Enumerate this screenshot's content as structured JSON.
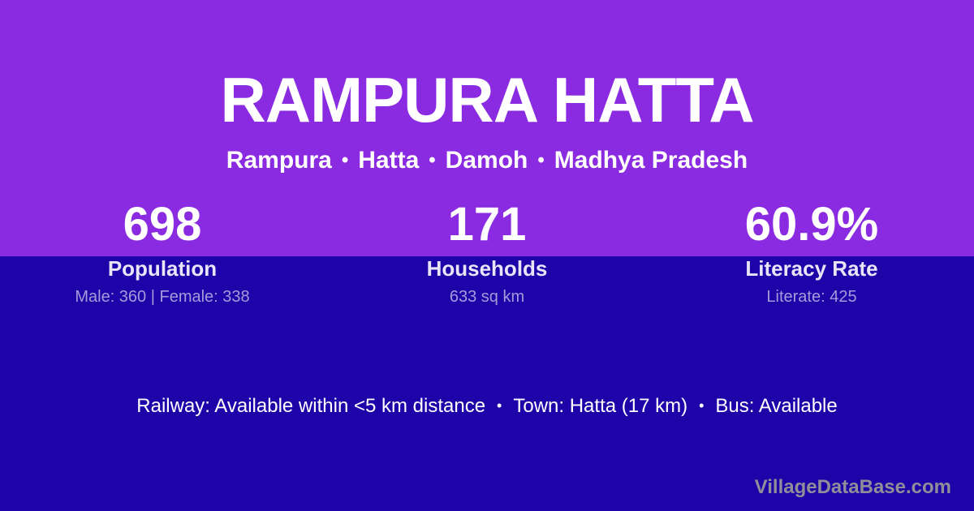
{
  "header": {
    "title": "RAMPURA HATTA",
    "breadcrumb": [
      "Rampura",
      "Hatta",
      "Damoh",
      "Madhya Pradesh"
    ]
  },
  "stats": [
    {
      "value": "698",
      "label": "Population",
      "detail": "Male: 360 | Female: 338"
    },
    {
      "value": "171",
      "label": "Households",
      "detail": "633 sq km"
    },
    {
      "value": "60.9%",
      "label": "Literacy Rate",
      "detail": "Literate: 425"
    }
  ],
  "amenities": [
    "Railway: Available within <5 km distance",
    "Town: Hatta (17 km)",
    "Bus: Available"
  ],
  "watermark": "VillageDataBase.com",
  "symbols": {
    "bullet": "•"
  },
  "colors": {
    "top-bg": "#8A2BE2",
    "bottom-bg": "#1E03A8",
    "text-primary": "#FFFFFF",
    "label-color": "#E9E5F9",
    "detail-color": "#A49BDB",
    "watermark-color": "#8F8F9A"
  }
}
